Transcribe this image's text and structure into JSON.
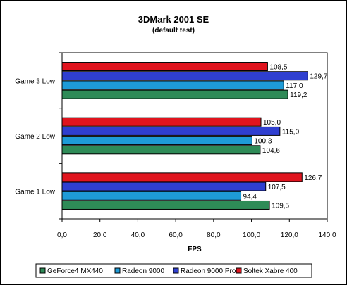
{
  "chart_data": {
    "type": "bar",
    "orientation": "horizontal",
    "title": "3DMark 2001 SE",
    "subtitle": "(default test)",
    "xlabel": "FPS",
    "ylabel": "",
    "xlim": [
      0,
      140
    ],
    "xticks": [
      "0,0",
      "20,0",
      "40,0",
      "60,0",
      "80,0",
      "100,0",
      "120,0",
      "140,0"
    ],
    "categories": [
      "Game 3 Low",
      "Game 2 Low",
      "Game 1 Low"
    ],
    "series": [
      {
        "name": "GeForce4 MX440",
        "color": "#2e8b57",
        "values": [
          119.2,
          104.6,
          109.5
        ],
        "labels": [
          "119,2",
          "104,6",
          "109,5"
        ]
      },
      {
        "name": "Radeon 9000",
        "color": "#1e9bd7",
        "values": [
          117.0,
          100.3,
          94.4
        ],
        "labels": [
          "117,0",
          "100,3",
          "94,4"
        ]
      },
      {
        "name": "Radeon 9000 Pro",
        "color": "#2f3fd0",
        "values": [
          129.7,
          115.0,
          107.5
        ],
        "labels": [
          "129,7",
          "115,0",
          "107,5"
        ]
      },
      {
        "name": "Soltek Xabre 400",
        "color": "#e0141e",
        "values": [
          108.5,
          105.0,
          126.7
        ],
        "labels": [
          "108,5",
          "105,0",
          "126,7"
        ]
      }
    ],
    "grid": false,
    "legend_position": "bottom"
  }
}
